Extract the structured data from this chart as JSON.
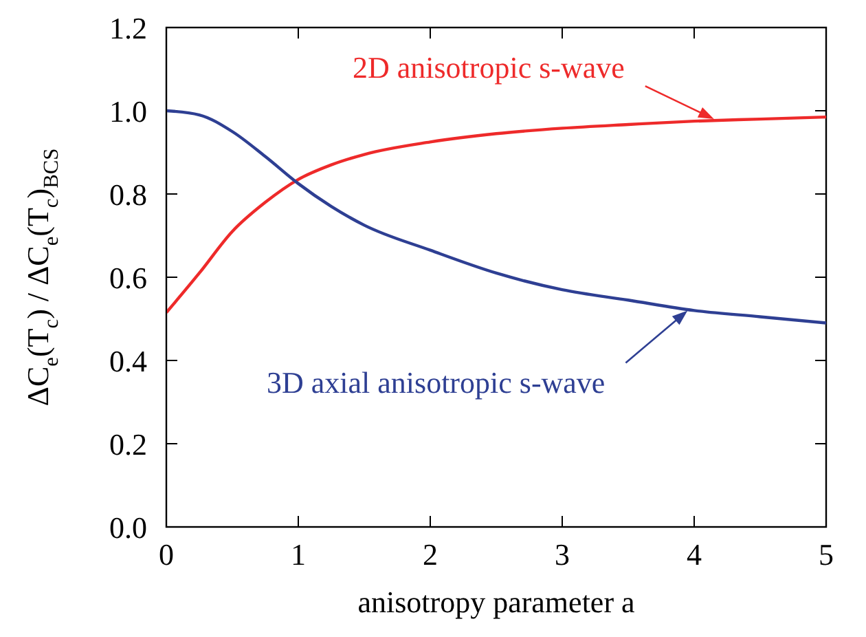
{
  "chart_data": {
    "type": "line",
    "xlabel": "anisotropy parameter a",
    "ylabel": "ΔC$_{e}$(T$_{c}$) / ΔC$_{e}$(T$_{c}$)$_{BCS}$",
    "x": [
      0,
      0.25,
      0.5,
      0.75,
      1,
      1.25,
      1.5,
      2,
      2.5,
      3,
      3.5,
      4,
      4.5,
      5
    ],
    "series": [
      {
        "color": "#ee2a2a",
        "values": [
          0.515,
          0.61,
          0.71,
          0.78,
          0.835,
          0.87,
          0.895,
          0.925,
          0.945,
          0.958,
          0.967,
          0.975,
          0.98,
          0.985
        ]
      },
      {
        "color": "#2e3f93",
        "values": [
          1.0,
          0.99,
          0.95,
          0.89,
          0.825,
          0.77,
          0.725,
          0.665,
          0.61,
          0.57,
          0.545,
          0.52,
          0.505,
          0.49
        ]
      }
    ],
    "annotations": [
      {
        "text": "2D anisotropic s-wave",
        "x": 4.15,
        "y": 0.98
      },
      {
        "text": "3D axial anisotropic s-wave",
        "x": 3.95,
        "y": 0.52
      }
    ],
    "xlim": [
      0,
      5
    ],
    "xticks": [
      0,
      1,
      2,
      3,
      4,
      5
    ],
    "ylim": [
      0,
      1.2
    ],
    "yticks": [
      {
        "value": 0,
        "label": "0.0"
      },
      0.2,
      0.4,
      0.6,
      0.8,
      {
        "value": 1,
        "label": "1.0"
      },
      1.2
    ],
    "grid": false,
    "marker": "none",
    "line_style": "solid"
  }
}
